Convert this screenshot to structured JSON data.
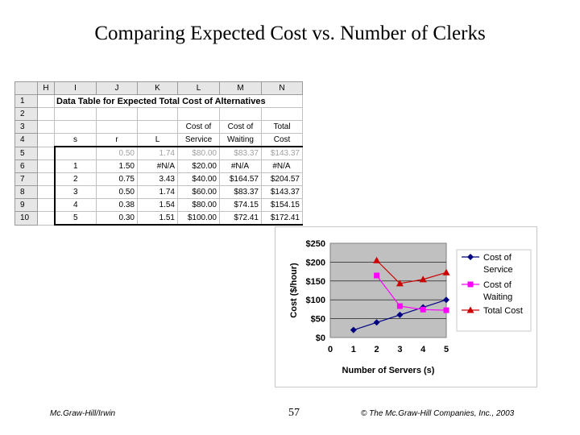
{
  "slide": {
    "title": "Comparing Expected Cost vs. Number of Clerks",
    "footer_left": "Mc.Graw-Hill/Irwin",
    "page_number": "57",
    "footer_right": "© The Mc.Graw-Hill Companies, Inc., 2003"
  },
  "sheet": {
    "columns": [
      "H",
      "I",
      "J",
      "K",
      "L",
      "M",
      "N"
    ],
    "rows": [
      {
        "n": "1",
        "cells": [
          "Data Table for Expected Total Cost of Alternatives"
        ]
      },
      {
        "n": "2",
        "cells": []
      },
      {
        "n": "3",
        "cells": [
          "",
          "",
          "",
          "",
          "Cost of",
          "Cost of",
          "Total"
        ]
      },
      {
        "n": "4",
        "cells": [
          "",
          "s",
          "r",
          "L",
          "Service",
          "Waiting",
          "Cost"
        ]
      },
      {
        "n": "5",
        "cells": [
          "",
          "",
          "0.50",
          "1.74",
          "$80.00",
          "$83.37",
          "$143.37"
        ]
      },
      {
        "n": "6",
        "cells": [
          "",
          "1",
          "1.50",
          "#N/A",
          "$20.00",
          "#N/A",
          "#N/A"
        ]
      },
      {
        "n": "7",
        "cells": [
          "",
          "2",
          "0.75",
          "3.43",
          "$40.00",
          "$164.57",
          "$204.57"
        ]
      },
      {
        "n": "8",
        "cells": [
          "",
          "3",
          "0.50",
          "1.74",
          "$60.00",
          "$83.37",
          "$143.37"
        ]
      },
      {
        "n": "9",
        "cells": [
          "",
          "4",
          "0.38",
          "1.54",
          "$80.00",
          "$74.15",
          "$154.15"
        ]
      },
      {
        "n": "10",
        "cells": [
          "",
          "5",
          "0.30",
          "1.51",
          "$100.00",
          "$72.41",
          "$172.41"
        ]
      }
    ]
  },
  "chart_data": {
    "type": "line",
    "xlabel": "Number of Servers (s)",
    "ylabel": "Cost ($/hour)",
    "xlim": [
      0,
      5
    ],
    "ylim": [
      0,
      250
    ],
    "x_ticks": [
      "0",
      "1",
      "2",
      "3",
      "4",
      "5"
    ],
    "y_ticks": [
      "$0",
      "$50",
      "$100",
      "$150",
      "$200",
      "$250"
    ],
    "plot_background": "#c0c0c0",
    "legend_position": "right",
    "series": [
      {
        "name": "Cost of Service",
        "label_lines": [
          "Cost of",
          "Service"
        ],
        "color": "#000080",
        "marker": "diamond",
        "x": [
          1,
          2,
          3,
          4,
          5
        ],
        "values": [
          20,
          40,
          60,
          80,
          100
        ]
      },
      {
        "name": "Cost of Waiting",
        "label_lines": [
          "Cost of",
          "Waiting"
        ],
        "color": "#ff00ff",
        "marker": "square",
        "x": [
          2,
          3,
          4,
          5
        ],
        "values": [
          164.57,
          83.37,
          74.15,
          72.41
        ]
      },
      {
        "name": "Total Cost",
        "label_lines": [
          "Total Cost"
        ],
        "color": "#cc0000",
        "marker": "triangle",
        "x": [
          2,
          3,
          4,
          5
        ],
        "values": [
          204.57,
          143.37,
          154.15,
          172.41
        ]
      }
    ]
  }
}
